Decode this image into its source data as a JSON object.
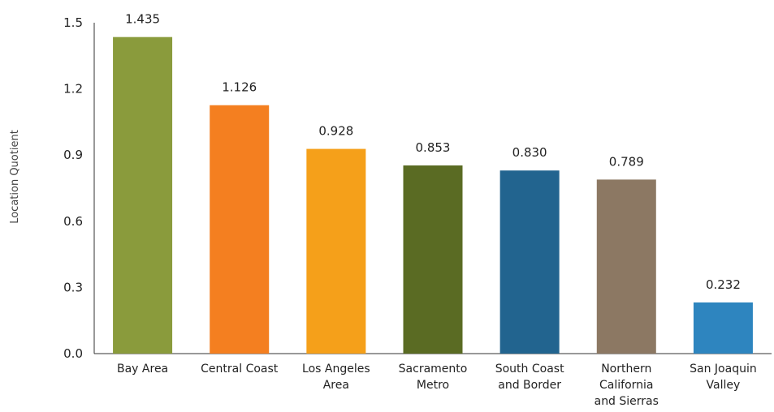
{
  "chart_data": {
    "type": "bar",
    "title": "",
    "xlabel": "",
    "ylabel": "Location Quotient",
    "ylim": [
      0,
      1.5
    ],
    "yticks": [
      "0.0",
      "0.3",
      "0.6",
      "0.9",
      "1.2",
      "1.5"
    ],
    "grid": false,
    "categories": [
      [
        "Bay Area"
      ],
      [
        "Central Coast"
      ],
      [
        "Los Angeles",
        "Area"
      ],
      [
        "Sacramento",
        "Metro"
      ],
      [
        "South Coast",
        "and Border"
      ],
      [
        "Northern",
        "California",
        "and Sierras"
      ],
      [
        "San Joaquin",
        "Valley"
      ]
    ],
    "values": [
      1.435,
      1.126,
      0.928,
      0.853,
      0.83,
      0.789,
      0.232
    ],
    "data_labels": [
      "1.435",
      "1.126",
      "0.928",
      "0.853",
      "0.830",
      "0.789",
      "0.232"
    ],
    "colors": [
      "#8a9b3c",
      "#f47f20",
      "#f5a01a",
      "#5a6b23",
      "#22648f",
      "#8c7863",
      "#2e85bf"
    ]
  }
}
